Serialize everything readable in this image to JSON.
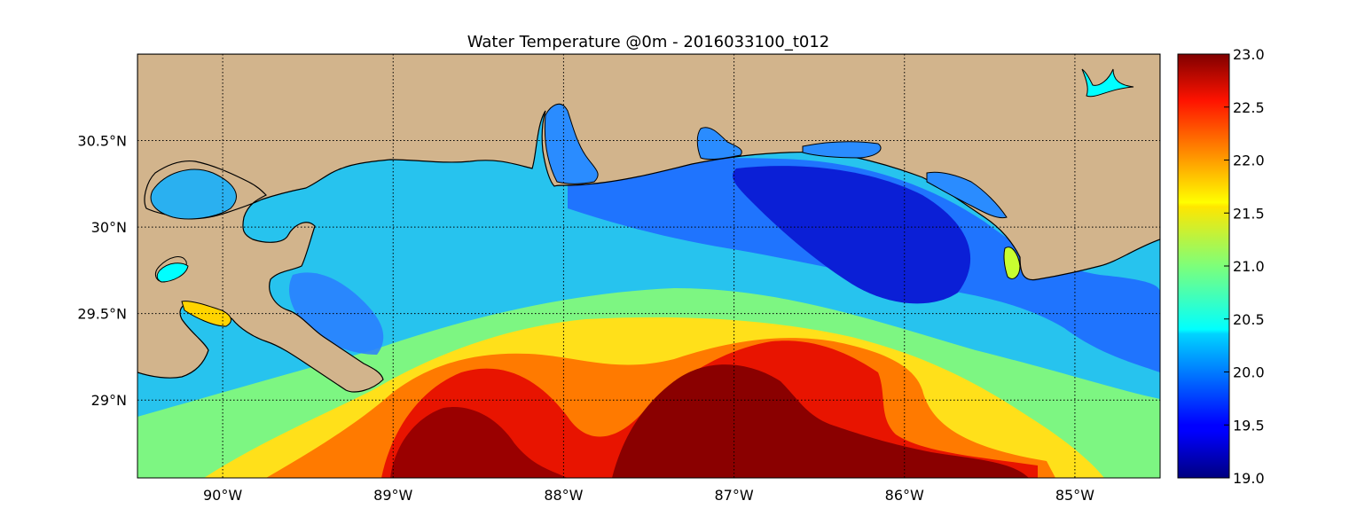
{
  "title": "Water Temperature @0m - 2016033100_t012",
  "map": {
    "lon_range": [
      -90.5,
      -84.5
    ],
    "lat_range": [
      28.55,
      31.0
    ],
    "lon_ticks": [
      {
        "value": -90,
        "label": "90°W"
      },
      {
        "value": -89,
        "label": "89°W"
      },
      {
        "value": -88,
        "label": "88°W"
      },
      {
        "value": -87,
        "label": "87°W"
      },
      {
        "value": -86,
        "label": "86°W"
      },
      {
        "value": -85,
        "label": "85°W"
      }
    ],
    "lat_ticks": [
      {
        "value": 30.5,
        "label": "30.5°N"
      },
      {
        "value": 30.0,
        "label": "30°N"
      },
      {
        "value": 29.5,
        "label": "29.5°N"
      },
      {
        "value": 29.0,
        "label": "29°N"
      }
    ],
    "grid": true,
    "land_color": "#d2b48c",
    "coastline_color": "#000000"
  },
  "colorbar": {
    "min": 19.0,
    "max": 23.0,
    "ticks": [
      "19.0",
      "19.5",
      "20.0",
      "20.5",
      "21.0",
      "21.5",
      "22.0",
      "22.5",
      "23.0"
    ],
    "colormap": "jet"
  }
}
